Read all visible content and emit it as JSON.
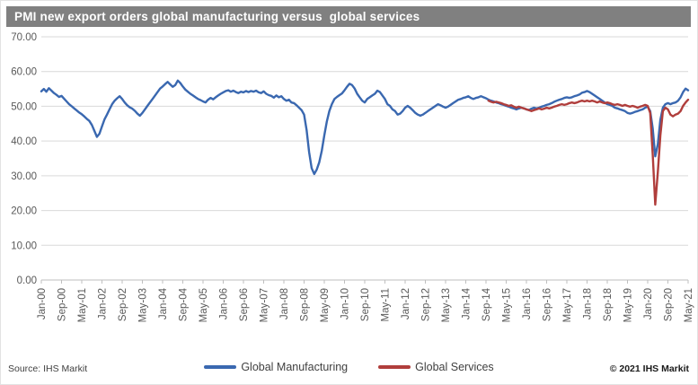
{
  "title": "PMI new export orders global manufacturing versus  global services",
  "footer": {
    "source": "Source: IHS Markit",
    "copyright": "© 2021 IHS Markit"
  },
  "colors": {
    "title_bar": "#808080",
    "title_text": "#FFFFFF",
    "gridline": "#D9D9D9",
    "axis_line": "#BFBFBF",
    "tick_text": "#595959",
    "manufacturing_blue": "#3A68B0",
    "services_red": "#B03E3C"
  },
  "chart_data": {
    "type": "line",
    "title": "PMI new export orders global manufacturing versus  global services",
    "xlabel": "",
    "ylabel": "",
    "x_start": "Jan-2000",
    "x_end": "May-2021",
    "x_points": 257,
    "x_tick_step_months": 8,
    "x_tick_labels": [
      "Jan-00",
      "Sep-00",
      "May-01",
      "Jan-02",
      "Sep-02",
      "May-03",
      "Jan-04",
      "Sep-04",
      "May-05",
      "Jan-06",
      "Sep-06",
      "May-07",
      "Jan-08",
      "Sep-08",
      "May-09",
      "Jan-10",
      "Sep-10",
      "May-11",
      "Jan-12",
      "Sep-12",
      "May-13",
      "Jan-14",
      "Sep-14",
      "May-15",
      "Jan-16",
      "Sep-16",
      "May-17",
      "Jan-18",
      "Sep-18",
      "May-19",
      "Jan-20",
      "Sep-20",
      "May-21"
    ],
    "ylim": [
      0,
      70
    ],
    "y_tick_labels": [
      "0.00",
      "10.00",
      "20.00",
      "30.00",
      "40.00",
      "50.00",
      "60.00",
      "70.00"
    ],
    "grid": true,
    "legend_position": "bottom",
    "series": [
      {
        "name": "Global Manufacturing",
        "color": "#3A68B0",
        "start_index": 0,
        "values": [
          54.3,
          55.0,
          54.2,
          55.2,
          54.5,
          53.8,
          53.3,
          52.7,
          53.0,
          52.2,
          51.4,
          50.6,
          50.0,
          49.4,
          48.8,
          48.2,
          47.7,
          47.1,
          46.4,
          45.8,
          44.6,
          42.9,
          41.2,
          42.1,
          44.2,
          46.2,
          47.6,
          49.1,
          50.6,
          51.6,
          52.3,
          52.9,
          52.1,
          51.1,
          50.3,
          49.7,
          49.3,
          48.7,
          47.9,
          47.3,
          48.1,
          49.1,
          50.1,
          51.1,
          52.1,
          53.1,
          54.1,
          55.1,
          55.7,
          56.4,
          57.0,
          56.3,
          55.6,
          56.1,
          57.4,
          56.7,
          55.7,
          54.8,
          54.2,
          53.6,
          53.1,
          52.6,
          52.1,
          51.8,
          51.4,
          51.1,
          51.9,
          52.4,
          52.0,
          52.6,
          53.1,
          53.6,
          54.0,
          54.4,
          54.6,
          54.2,
          54.5,
          54.1,
          53.8,
          54.2,
          54.0,
          54.4,
          54.1,
          54.4,
          54.2,
          54.5,
          54.0,
          53.8,
          54.3,
          53.6,
          53.2,
          53.0,
          52.5,
          53.1,
          52.6,
          52.9,
          52.1,
          51.6,
          51.9,
          51.1,
          50.9,
          50.3,
          49.6,
          48.9,
          47.6,
          43.2,
          36.8,
          32.2,
          30.5,
          31.8,
          33.9,
          37.2,
          41.6,
          45.6,
          48.6,
          50.6,
          52.1,
          52.7,
          53.2,
          53.7,
          54.6,
          55.6,
          56.5,
          56.1,
          55.1,
          53.6,
          52.6,
          51.6,
          51.1,
          52.1,
          52.6,
          53.1,
          53.6,
          54.5,
          54.1,
          53.1,
          52.1,
          50.6,
          50.1,
          49.1,
          48.6,
          47.6,
          47.9,
          48.6,
          49.6,
          50.1,
          49.6,
          48.9,
          48.1,
          47.6,
          47.3,
          47.6,
          48.1,
          48.6,
          49.1,
          49.6,
          50.1,
          50.6,
          50.3,
          49.9,
          49.6,
          49.9,
          50.4,
          50.9,
          51.4,
          51.9,
          52.1,
          52.4,
          52.6,
          52.9,
          52.4,
          52.1,
          52.4,
          52.6,
          52.9,
          52.6,
          52.3,
          51.9,
          51.6,
          51.4,
          51.1,
          50.9,
          50.6,
          50.4,
          50.1,
          49.9,
          49.6,
          49.4,
          49.1,
          49.4,
          49.6,
          49.4,
          49.1,
          48.9,
          49.3,
          49.6,
          49.4,
          49.6,
          49.9,
          50.1,
          50.4,
          50.6,
          50.9,
          51.3,
          51.6,
          51.9,
          52.1,
          52.4,
          52.6,
          52.4,
          52.6,
          52.9,
          53.1,
          53.4,
          53.9,
          54.1,
          54.4,
          54.1,
          53.6,
          53.1,
          52.6,
          52.1,
          51.6,
          51.1,
          50.6,
          50.4,
          50.1,
          49.6,
          49.4,
          49.1,
          48.9,
          48.6,
          48.1,
          47.9,
          48.1,
          48.4,
          48.6,
          48.9,
          49.1,
          49.6,
          49.9,
          48.6,
          43.6,
          35.6,
          39.1,
          46.1,
          49.6,
          50.6,
          50.9,
          50.6,
          50.9,
          51.1,
          51.6,
          52.6,
          54.1,
          55.1,
          54.6
        ]
      },
      {
        "name": "Global Services",
        "color": "#B03E3C",
        "start_index": 177,
        "values": [
          51.6,
          51.3,
          51.1,
          51.3,
          51.1,
          50.9,
          50.6,
          50.4,
          50.1,
          50.3,
          49.9,
          49.6,
          49.9,
          49.6,
          49.4,
          49.1,
          48.9,
          48.6,
          48.9,
          49.1,
          49.4,
          49.1,
          49.3,
          49.6,
          49.4,
          49.6,
          49.9,
          50.1,
          50.4,
          50.6,
          50.4,
          50.6,
          50.9,
          51.1,
          50.9,
          51.1,
          51.4,
          51.6,
          51.4,
          51.6,
          51.4,
          51.6,
          51.4,
          51.1,
          51.4,
          51.1,
          50.9,
          51.1,
          50.9,
          50.6,
          50.4,
          50.6,
          50.4,
          50.1,
          50.4,
          50.1,
          49.9,
          50.1,
          49.9,
          49.6,
          49.9,
          50.1,
          50.4,
          50.1,
          48.1,
          36.1,
          21.7,
          31.1,
          41.6,
          48.6,
          49.6,
          49.1,
          47.6,
          47.1,
          47.6,
          47.9,
          48.6,
          50.1,
          51.1,
          51.9
        ]
      }
    ]
  }
}
